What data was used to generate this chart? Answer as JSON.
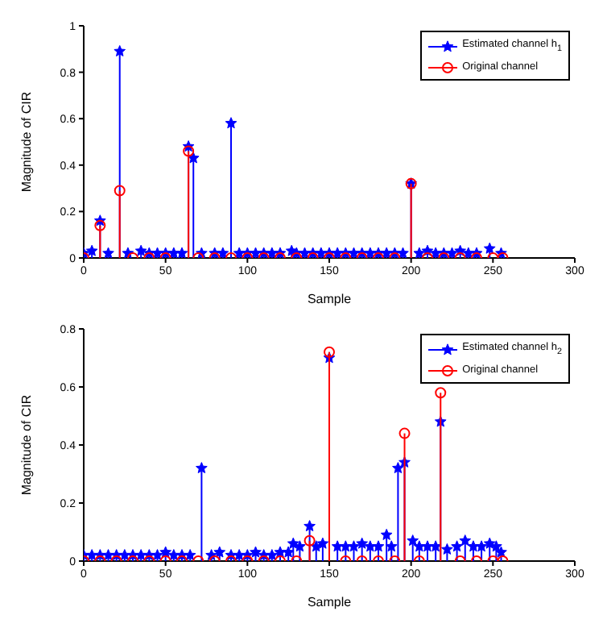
{
  "chart_data": [
    {
      "type": "lollipop",
      "xlabel": "Sample",
      "ylabel": "Magnitude of CIR",
      "xlim": [
        0,
        300
      ],
      "xticks": [
        0,
        50,
        100,
        150,
        200,
        250,
        300
      ],
      "ylim": [
        0,
        1
      ],
      "yticks": [
        0,
        0.2,
        0.4,
        0.6,
        0.8,
        1
      ],
      "legend": "top right",
      "series": [
        {
          "name": "Estimated channel h$_{1}$",
          "color": "#0000ff",
          "marker": "star",
          "x": [
            0,
            5,
            10,
            15,
            22,
            27,
            35,
            40,
            45,
            50,
            55,
            60,
            64,
            67,
            72,
            80,
            85,
            90,
            95,
            100,
            105,
            110,
            115,
            120,
            127,
            130,
            135,
            140,
            145,
            150,
            155,
            160,
            165,
            170,
            175,
            180,
            185,
            190,
            195,
            200,
            205,
            210,
            215,
            220,
            225,
            230,
            235,
            240,
            248,
            255
          ],
          "values": [
            0.02,
            0.03,
            0.16,
            0.02,
            0.89,
            0.02,
            0.03,
            0.02,
            0.02,
            0.02,
            0.02,
            0.02,
            0.48,
            0.43,
            0.02,
            0.02,
            0.02,
            0.58,
            0.02,
            0.02,
            0.02,
            0.02,
            0.02,
            0.02,
            0.03,
            0.02,
            0.02,
            0.02,
            0.02,
            0.02,
            0.02,
            0.02,
            0.02,
            0.02,
            0.02,
            0.02,
            0.02,
            0.02,
            0.02,
            0.32,
            0.02,
            0.03,
            0.02,
            0.02,
            0.02,
            0.03,
            0.02,
            0.02,
            0.04,
            0.02
          ]
        },
        {
          "name": "Original channel",
          "color": "#ff0000",
          "marker": "circle",
          "x": [
            0,
            10,
            22,
            30,
            40,
            50,
            64,
            70,
            80,
            90,
            100,
            110,
            120,
            130,
            140,
            150,
            160,
            170,
            180,
            190,
            200,
            210,
            220,
            230,
            240,
            250,
            256
          ],
          "values": [
            0,
            0.14,
            0.29,
            0,
            0,
            0,
            0.46,
            0,
            0,
            0,
            0,
            0,
            0,
            0,
            0,
            0,
            0,
            0,
            0,
            0,
            0.32,
            0,
            0,
            0,
            0,
            0,
            0
          ]
        }
      ]
    },
    {
      "type": "lollipop",
      "xlabel": "Sample",
      "ylabel": "Magnitude of CIR",
      "xlim": [
        0,
        300
      ],
      "xticks": [
        0,
        50,
        100,
        150,
        200,
        250,
        300
      ],
      "ylim": [
        0,
        0.8
      ],
      "yticks": [
        0,
        0.2,
        0.4,
        0.6,
        0.8
      ],
      "legend": "top right",
      "series": [
        {
          "name": "Estimated channel h$_{2}$",
          "color": "#0000ff",
          "marker": "star",
          "x": [
            0,
            5,
            10,
            15,
            20,
            25,
            30,
            35,
            40,
            45,
            50,
            55,
            60,
            65,
            72,
            78,
            83,
            90,
            95,
            100,
            105,
            110,
            115,
            120,
            125,
            128,
            132,
            138,
            142,
            146,
            150,
            155,
            160,
            165,
            170,
            175,
            180,
            185,
            188,
            192,
            196,
            201,
            205,
            210,
            215,
            218,
            222,
            228,
            233,
            238,
            243,
            248,
            252,
            255
          ],
          "values": [
            0.02,
            0.02,
            0.02,
            0.02,
            0.02,
            0.02,
            0.02,
            0.02,
            0.02,
            0.02,
            0.03,
            0.02,
            0.02,
            0.02,
            0.32,
            0.02,
            0.03,
            0.02,
            0.02,
            0.02,
            0.03,
            0.02,
            0.02,
            0.03,
            0.03,
            0.06,
            0.05,
            0.12,
            0.05,
            0.06,
            0.7,
            0.05,
            0.05,
            0.05,
            0.06,
            0.05,
            0.05,
            0.09,
            0.05,
            0.32,
            0.34,
            0.07,
            0.05,
            0.05,
            0.05,
            0.48,
            0.04,
            0.05,
            0.07,
            0.05,
            0.05,
            0.06,
            0.05,
            0.03
          ]
        },
        {
          "name": "Original channel",
          "color": "#ff0000",
          "marker": "circle",
          "x": [
            0,
            10,
            20,
            30,
            40,
            50,
            60,
            70,
            80,
            90,
            100,
            110,
            120,
            130,
            138,
            150,
            160,
            170,
            180,
            190,
            196,
            205,
            218,
            230,
            240,
            250,
            256
          ],
          "values": [
            0,
            0,
            0,
            0,
            0,
            0,
            0,
            0,
            0,
            0,
            0,
            0,
            0,
            0,
            0.07,
            0.72,
            0,
            0,
            0,
            0,
            0.44,
            0,
            0.58,
            0,
            0,
            0,
            0
          ]
        }
      ]
    }
  ]
}
